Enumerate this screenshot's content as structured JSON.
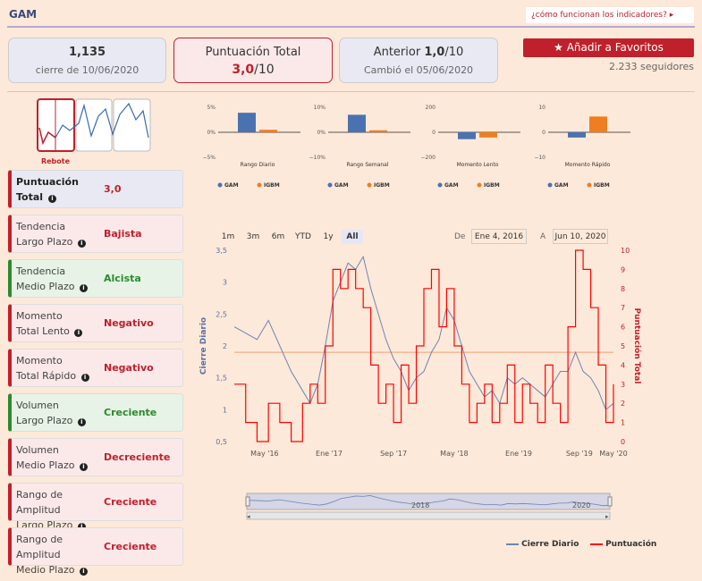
{
  "header": {
    "ticker": "GAM",
    "help_link": "¿cómo funcionan los indicadores? ▸"
  },
  "cards": {
    "close": {
      "value": "1,135",
      "caption": "cierre de 10/06/2020"
    },
    "score": {
      "title": "Puntuación Total",
      "value": "3,0",
      "suffix": "/10"
    },
    "previous": {
      "label": "Anterior ",
      "value": "1,0",
      "suffix": "/10",
      "caption": "Cambió el 05/06/2020"
    }
  },
  "favorites": {
    "label": "Añadir a Favoritos",
    "followers": "2.233 seguidores"
  },
  "sparkline": {
    "label": "Rebote"
  },
  "indicators": [
    {
      "line1": "Puntuación",
      "line2": "Total",
      "value": "3,0",
      "state": "neutral"
    },
    {
      "line1": "Tendencia",
      "line2": "Largo Plazo",
      "value": "Bajista",
      "state": "bad"
    },
    {
      "line1": "Tendencia",
      "line2": "Medio Plazo",
      "value": "Alcista",
      "state": "good"
    },
    {
      "line1": "Momento",
      "line2": "Total Lento",
      "value": "Negativo",
      "state": "bad"
    },
    {
      "line1": "Momento",
      "line2": "Total Rápido",
      "value": "Negativo",
      "state": "bad"
    },
    {
      "line1": "Volumen",
      "line2": "Largo Plazo",
      "value": "Creciente",
      "state": "good"
    },
    {
      "line1": "Volumen",
      "line2": "Medio Plazo",
      "value": "Decreciente",
      "state": "bad"
    },
    {
      "line1": "Rango de Amplitud",
      "line2": "Largo Plazo",
      "value": "Creciente",
      "state": "bad"
    },
    {
      "line1": "Rango de Amplitud",
      "line2": "Medio Plazo",
      "value": "Creciente",
      "state": "bad"
    }
  ],
  "mini_charts": [
    {
      "title": "Rango Diario",
      "ticks": [
        "5%",
        "0%",
        "−5%"
      ],
      "ymax": 5,
      "gam": 3.9,
      "igbm": 0.5
    },
    {
      "title": "Rango Semanal",
      "ticks": [
        "10%",
        "0%",
        "−10%"
      ],
      "ymax": 10,
      "gam": 7.0,
      "igbm": 0.8
    },
    {
      "title": "Momento Lento",
      "ticks": [
        "200",
        "0",
        "−200"
      ],
      "ymax": 200,
      "gam": -55,
      "igbm": -42
    },
    {
      "title": "Momento Rápido",
      "ticks": [
        "10",
        "0",
        "−10"
      ],
      "ymax": 10,
      "gam": -2.1,
      "igbm": 6.3
    }
  ],
  "mini_legend": {
    "gam": "GAM",
    "igbm": "IGBM"
  },
  "colors": {
    "gam": "#4a72b0",
    "igbm": "#ef7d22",
    "accent": "#c0202b",
    "close_line": "#6c84b4",
    "score_line": "#ff0000"
  },
  "range": {
    "buttons": [
      "1m",
      "3m",
      "6m",
      "YTD",
      "1y",
      "All"
    ],
    "active": "All",
    "from_label": "De",
    "from_value": "Ene 4, 2016",
    "to_label": "A",
    "to_value": "Jun 10, 2020"
  },
  "chart_data": {
    "type": "line",
    "title": "",
    "ylabel": "Cierre Diario",
    "y2label": "Puntuación Total",
    "ylim": [
      0.5,
      3.5
    ],
    "y2lim": [
      0,
      10
    ],
    "yticks": [
      "0,5",
      "1",
      "1,5",
      "2",
      "2,5",
      "3",
      "3,5"
    ],
    "y2ticks": [
      "0",
      "1",
      "2",
      "3",
      "4",
      "5",
      "6",
      "7",
      "8",
      "9",
      "10"
    ],
    "reference_level": 1.9,
    "x_labels": [
      {
        "label": "May '16",
        "t": 0.08
      },
      {
        "label": "Ene '17",
        "t": 0.25
      },
      {
        "label": "Sep '17",
        "t": 0.42
      },
      {
        "label": "May '18",
        "t": 0.58
      },
      {
        "label": "Ene '19",
        "t": 0.75
      },
      {
        "label": "Sep '19",
        "t": 0.91
      },
      {
        "label": "May '20",
        "t": 1.0
      }
    ],
    "series": [
      {
        "name": "Cierre Diario",
        "x": [
          0,
          0.03,
          0.06,
          0.09,
          0.12,
          0.15,
          0.18,
          0.2,
          0.22,
          0.24,
          0.26,
          0.28,
          0.3,
          0.32,
          0.34,
          0.36,
          0.38,
          0.4,
          0.42,
          0.44,
          0.46,
          0.48,
          0.5,
          0.52,
          0.54,
          0.56,
          0.58,
          0.6,
          0.62,
          0.64,
          0.66,
          0.68,
          0.7,
          0.72,
          0.74,
          0.76,
          0.78,
          0.8,
          0.82,
          0.84,
          0.86,
          0.88,
          0.9,
          0.92,
          0.94,
          0.96,
          0.98,
          1.0
        ],
        "y": [
          2.3,
          2.2,
          2.1,
          2.4,
          2.0,
          1.6,
          1.3,
          1.1,
          1.4,
          2.0,
          2.7,
          3.0,
          3.3,
          3.2,
          3.4,
          2.9,
          2.5,
          2.1,
          1.8,
          1.6,
          1.3,
          1.5,
          1.6,
          1.9,
          2.1,
          2.6,
          2.4,
          2.0,
          1.6,
          1.4,
          1.2,
          1.3,
          1.1,
          1.5,
          1.4,
          1.5,
          1.4,
          1.3,
          1.2,
          1.4,
          1.6,
          1.6,
          1.9,
          1.6,
          1.5,
          1.3,
          1.0,
          1.1
        ]
      },
      {
        "name": "Puntuación",
        "x": [
          0,
          0.03,
          0.06,
          0.09,
          0.12,
          0.15,
          0.18,
          0.2,
          0.22,
          0.24,
          0.26,
          0.28,
          0.3,
          0.32,
          0.34,
          0.36,
          0.38,
          0.4,
          0.42,
          0.44,
          0.46,
          0.48,
          0.5,
          0.52,
          0.54,
          0.56,
          0.58,
          0.6,
          0.62,
          0.64,
          0.66,
          0.68,
          0.7,
          0.72,
          0.74,
          0.76,
          0.78,
          0.8,
          0.82,
          0.84,
          0.86,
          0.88,
          0.9,
          0.92,
          0.94,
          0.96,
          0.98,
          1.0
        ],
        "y": [
          3,
          1,
          0,
          2,
          1,
          0,
          2,
          3,
          2,
          5,
          9,
          8,
          9,
          8,
          7,
          4,
          2,
          3,
          1,
          4,
          2,
          5,
          8,
          9,
          6,
          8,
          5,
          3,
          1,
          2,
          3,
          1,
          2,
          4,
          1,
          3,
          2,
          1,
          4,
          2,
          1,
          6,
          10,
          9,
          7,
          4,
          1,
          3
        ]
      }
    ],
    "legend": [
      "Cierre Diario",
      "Puntuación"
    ],
    "legend_position": "bottom-right"
  },
  "navigator": {
    "labels": [
      "2018",
      "2020"
    ]
  }
}
